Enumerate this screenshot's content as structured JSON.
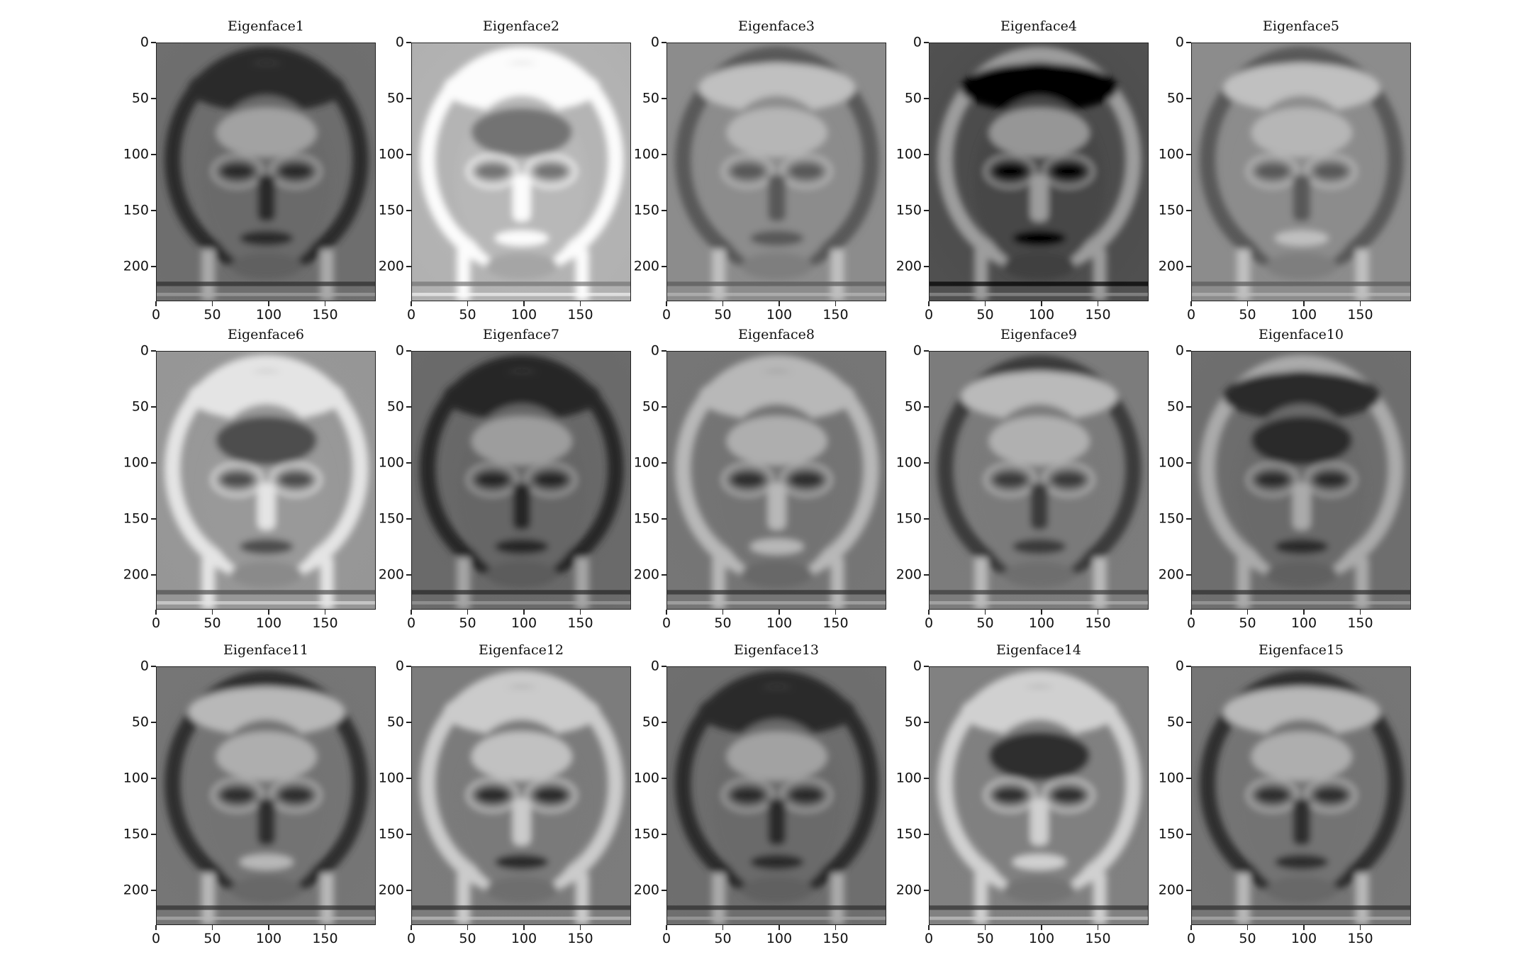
{
  "figure": {
    "background": "#ffffff",
    "image_shape": [
      231,
      195
    ],
    "panels": [
      {
        "title": "Eigenface1",
        "tone": 0.42,
        "contrast": 0.55
      },
      {
        "title": "Eigenface2",
        "tone": 0.72,
        "contrast": 0.6
      },
      {
        "title": "Eigenface3",
        "tone": 0.55,
        "contrast": 0.45
      },
      {
        "title": "Eigenface4",
        "tone": 0.28,
        "contrast": 0.75
      },
      {
        "title": "Eigenface5",
        "tone": 0.55,
        "contrast": 0.45
      },
      {
        "title": "Eigenface6",
        "tone": 0.6,
        "contrast": 0.65
      },
      {
        "title": "Eigenface7",
        "tone": 0.4,
        "contrast": 0.55
      },
      {
        "title": "Eigenface8",
        "tone": 0.45,
        "contrast": 0.6
      },
      {
        "title": "Eigenface9",
        "tone": 0.48,
        "contrast": 0.55
      },
      {
        "title": "Eigenface10",
        "tone": 0.42,
        "contrast": 0.55
      },
      {
        "title": "Eigenface11",
        "tone": 0.45,
        "contrast": 0.6
      },
      {
        "title": "Eigenface12",
        "tone": 0.48,
        "contrast": 0.7
      },
      {
        "title": "Eigenface13",
        "tone": 0.42,
        "contrast": 0.55
      },
      {
        "title": "Eigenface14",
        "tone": 0.5,
        "contrast": 0.7
      },
      {
        "title": "Eigenface15",
        "tone": 0.45,
        "contrast": 0.6
      }
    ],
    "yticks": [
      "0",
      "50",
      "100",
      "150",
      "200"
    ],
    "xticks": [
      "0",
      "50",
      "100",
      "150"
    ],
    "ytick_values": [
      0,
      50,
      100,
      150,
      200
    ],
    "xtick_values": [
      0,
      50,
      100,
      150
    ]
  }
}
